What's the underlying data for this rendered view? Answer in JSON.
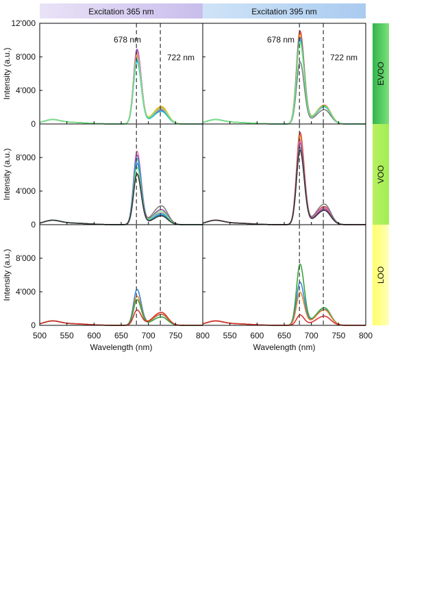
{
  "column_headers": [
    {
      "label": "Excitation 365 nm",
      "color_start": "#e9e3f7",
      "color_end": "#c8bdec"
    },
    {
      "label": "Excitation 395 nm",
      "color_start": "#cfe3f7",
      "color_end": "#a9cbf0"
    }
  ],
  "row_labels": [
    {
      "label": "EVOO",
      "color_start": "#2fb54a",
      "color_end": "#7ee07a"
    },
    {
      "label": "VOO",
      "color_start": "#b8f060",
      "color_end": "#a2ee55"
    },
    {
      "label": "LOO",
      "color_start": "#ffff66",
      "color_end": "#ffffbb"
    }
  ],
  "peak_annotations": [
    "678 nm",
    "722 nm"
  ],
  "chart_data": {
    "type": "line",
    "xlabel": "Wavelength (nm)",
    "ylabel": "Intensity (a.u.)",
    "xlim": [
      500,
      800
    ],
    "ylim": [
      0,
      12000
    ],
    "x_ticks": [
      500,
      550,
      600,
      650,
      700,
      750,
      800
    ],
    "x_tick_labels": [
      "500",
      "550",
      "600",
      "650",
      "700",
      "750",
      "800"
    ],
    "y_ticks": [
      0,
      4000,
      8000,
      12000
    ],
    "y_tick_labels": [
      "0",
      "4'000",
      "8'000",
      "12'000"
    ],
    "reference_lines": [
      678,
      722
    ],
    "grid": false,
    "panels": [
      {
        "row": "EVOO",
        "excitation": "365 nm",
        "series": [
          {
            "color": "#e67e22",
            "peak": 8600,
            "shoulder": 1950
          },
          {
            "color": "#2f7ed8",
            "peak": 8000,
            "shoulder": 1600
          },
          {
            "color": "#8e44ad",
            "peak": 9300,
            "shoulder": 1700
          },
          {
            "color": "#e6c222",
            "peak": 8900,
            "shoulder": 2100
          },
          {
            "color": "#e377c2",
            "peak": 9000,
            "shoulder": 1750
          },
          {
            "color": "#17becf",
            "peak": 7800,
            "shoulder": 1500
          },
          {
            "color": "#78e878",
            "peak": 8300,
            "shoulder": 1850
          }
        ]
      },
      {
        "row": "EVOO",
        "excitation": "395 nm",
        "series": [
          {
            "color": "#d62728",
            "peak": 11600,
            "shoulder": 2200
          },
          {
            "color": "#e67e22",
            "peak": 11300,
            "shoulder": 2250
          },
          {
            "color": "#2f7ed8",
            "peak": 10800,
            "shoulder": 2050
          },
          {
            "color": "#777777",
            "peak": 7800,
            "shoulder": 1700
          },
          {
            "color": "#17becf",
            "peak": 10500,
            "shoulder": 2100
          },
          {
            "color": "#78e878",
            "peak": 10200,
            "shoulder": 2150
          }
        ]
      },
      {
        "row": "VOO",
        "excitation": "365 nm",
        "series": [
          {
            "color": "#e377c2",
            "peak": 9100,
            "shoulder": 1400
          },
          {
            "color": "#8e44ad",
            "peak": 8700,
            "shoulder": 1800
          },
          {
            "color": "#17becf",
            "peak": 8200,
            "shoulder": 1300
          },
          {
            "color": "#2f7ed8",
            "peak": 7600,
            "shoulder": 1150
          },
          {
            "color": "#78e878",
            "peak": 7200,
            "shoulder": 1600
          },
          {
            "color": "#777777",
            "peak": 6600,
            "shoulder": 2250
          },
          {
            "color": "#333333",
            "peak": 6300,
            "shoulder": 1050
          }
        ]
      },
      {
        "row": "VOO",
        "excitation": "395 nm",
        "series": [
          {
            "color": "#d62728",
            "peak": 11500,
            "shoulder": 2150
          },
          {
            "color": "#e67e22",
            "peak": 11100,
            "shoulder": 2000
          },
          {
            "color": "#e377c2",
            "peak": 10600,
            "shoulder": 2050
          },
          {
            "color": "#8e44ad",
            "peak": 10200,
            "shoulder": 1850
          },
          {
            "color": "#777777",
            "peak": 9800,
            "shoulder": 2450
          },
          {
            "color": "#333333",
            "peak": 9300,
            "shoulder": 1700
          }
        ]
      },
      {
        "row": "LOO",
        "excitation": "365 nm",
        "series": [
          {
            "color": "#2f7ed8",
            "peak": 4600,
            "shoulder": 1300
          },
          {
            "color": "#e67e22",
            "peak": 3800,
            "shoulder": 1350
          },
          {
            "color": "#2ca02c",
            "peak": 3300,
            "shoulder": 1000
          },
          {
            "color": "#d62728",
            "peak": 2200,
            "shoulder": 1550
          }
        ]
      },
      {
        "row": "LOO",
        "excitation": "395 nm",
        "series": [
          {
            "color": "#2ca02c",
            "peak": 7800,
            "shoulder": 2100
          },
          {
            "color": "#2f7ed8",
            "peak": 5600,
            "shoulder": 1900
          },
          {
            "color": "#e67e22",
            "peak": 4400,
            "shoulder": 1850
          },
          {
            "color": "#d62728",
            "peak": 1500,
            "shoulder": 1100
          }
        ]
      }
    ]
  }
}
